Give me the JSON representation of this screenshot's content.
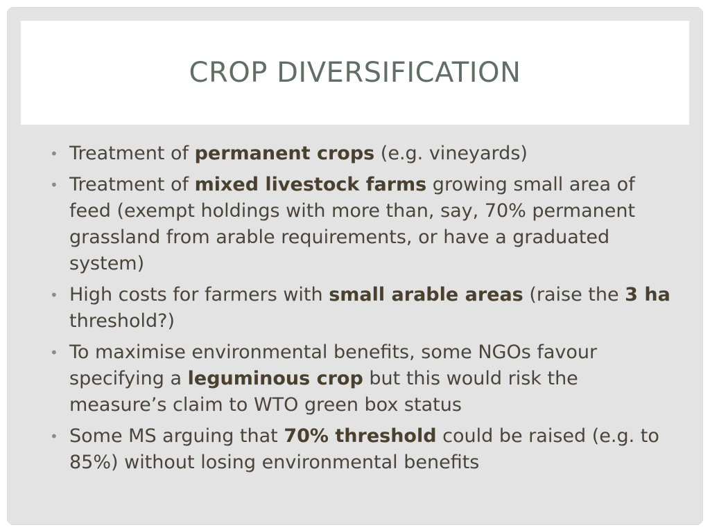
{
  "slide": {
    "title": "CROP DIVERSIFICATION",
    "bullet_marker": "•",
    "bullets": [
      {
        "segments": [
          {
            "text": "Treatment of ",
            "bold": false
          },
          {
            "text": "permanent crops",
            "bold": true
          },
          {
            "text": " (e.g. vineyards)",
            "bold": false
          }
        ]
      },
      {
        "segments": [
          {
            "text": "Treatment of ",
            "bold": false
          },
          {
            "text": "mixed livestock farms",
            "bold": true
          },
          {
            "text": " growing small area of feed (exempt holdings with more than, say, 70% permanent grassland from arable requirements, or have a graduated system)",
            "bold": false
          }
        ]
      },
      {
        "segments": [
          {
            "text": "High costs for farmers with ",
            "bold": false
          },
          {
            "text": "small arable areas",
            "bold": true
          },
          {
            "text": " (raise the ",
            "bold": false
          },
          {
            "text": "3 ha",
            "bold": true
          },
          {
            "text": " threshold?)",
            "bold": false
          }
        ]
      },
      {
        "segments": [
          {
            "text": "To maximise environmental benefits, some NGOs favour specifying a ",
            "bold": false
          },
          {
            "text": "leguminous crop",
            "bold": true
          },
          {
            "text": " but this would risk the measure’s claim to WTO green box status",
            "bold": false
          }
        ]
      },
      {
        "segments": [
          {
            "text": "Some MS arguing that ",
            "bold": false
          },
          {
            "text": "70% threshold",
            "bold": true
          },
          {
            "text": " could be raised (e.g. to 85%) without losing environmental benefits",
            "bold": false
          }
        ]
      }
    ]
  },
  "colors": {
    "slide_background": "#e3e3e3",
    "title_band": "#ffffff",
    "title_text": "#5f6e66",
    "body_text": "#4a443a",
    "bullet_marker": "#8a8a8a"
  }
}
